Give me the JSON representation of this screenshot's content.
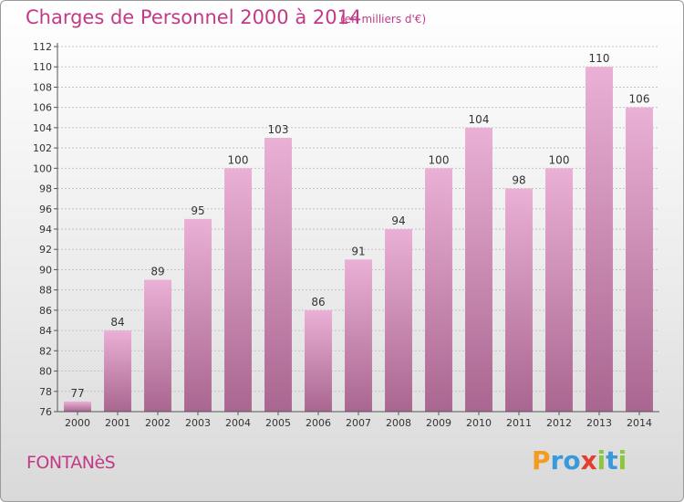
{
  "title": "Charges de Personnel 2000 à 2014",
  "subtitle": "(en milliers d'€)",
  "commune": "FONTANèS",
  "logo": {
    "letters": [
      "P",
      "r",
      "o",
      "x",
      "i",
      "t",
      "i"
    ],
    "colors": [
      "#f39c1f",
      "#3a9ad9",
      "#3a9ad9",
      "#e53d2f",
      "#8cc63f",
      "#3a9ad9",
      "#8cc63f"
    ]
  },
  "colors": {
    "accent": "#c23a87",
    "bar_top": "#eab0d5",
    "bar_bottom": "#a96690"
  },
  "chart_data": {
    "type": "bar",
    "categories": [
      "2000",
      "2001",
      "2002",
      "2003",
      "2004",
      "2005",
      "2006",
      "2007",
      "2008",
      "2009",
      "2010",
      "2011",
      "2012",
      "2013",
      "2014"
    ],
    "values": [
      77,
      84,
      89,
      95,
      100,
      103,
      86,
      91,
      94,
      100,
      104,
      98,
      100,
      110,
      106
    ],
    "title": "Charges de Personnel 2000 à 2014",
    "subtitle": "(en milliers d'€)",
    "ylim": [
      76,
      112
    ],
    "yticks": [
      76,
      78,
      80,
      82,
      84,
      86,
      88,
      90,
      92,
      94,
      96,
      98,
      100,
      102,
      104,
      106,
      108,
      110,
      112
    ],
    "grid": true
  }
}
